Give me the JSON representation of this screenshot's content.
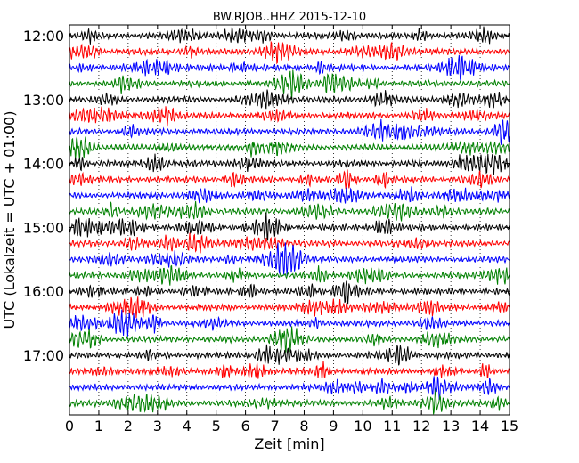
{
  "chart_data": {
    "type": "line",
    "title": "BW.RJOB..HHZ 2015-12-10",
    "xlabel": "Zeit  [min]",
    "ylabel": "UTC (Lokalzeit = UTC + 01:00)",
    "xlim": [
      0,
      15
    ],
    "x_ticks": [
      "0",
      "1",
      "2",
      "3",
      "4",
      "5",
      "6",
      "7",
      "8",
      "9",
      "10",
      "11",
      "12",
      "13",
      "14",
      "15"
    ],
    "y_tick_labels": [
      "12:00",
      "13:00",
      "14:00",
      "15:00",
      "16:00",
      "17:00"
    ],
    "row_start_times": [
      "12:00",
      "12:15",
      "12:30",
      "12:45",
      "13:00",
      "13:15",
      "13:30",
      "13:45",
      "14:00",
      "14:15",
      "14:30",
      "14:45",
      "15:00",
      "15:15",
      "15:30",
      "15:45",
      "16:00",
      "16:15",
      "16:30",
      "16:45",
      "17:00",
      "17:15",
      "17:30",
      "17:45"
    ],
    "series_colors": [
      "#000000",
      "#ff0000",
      "#0000ff",
      "#008000"
    ],
    "grid": {
      "vertical": true,
      "horizontal": false,
      "style": "dotted"
    }
  }
}
